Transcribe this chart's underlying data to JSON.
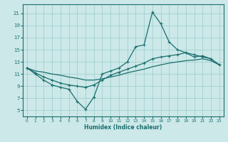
{
  "xlabel": "Humidex (Indice chaleur)",
  "xlim": [
    -0.5,
    23.5
  ],
  "ylim": [
    4,
    22.5
  ],
  "yticks": [
    5,
    7,
    9,
    11,
    13,
    15,
    17,
    19,
    21
  ],
  "xticks": [
    0,
    1,
    2,
    3,
    4,
    5,
    6,
    7,
    8,
    9,
    10,
    11,
    12,
    13,
    14,
    15,
    16,
    17,
    18,
    19,
    20,
    21,
    22,
    23
  ],
  "bg_color": "#cce8e8",
  "grid_color": "#99cccc",
  "line_color": "#1a6e6e",
  "line1_x": [
    0,
    1,
    2,
    3,
    4,
    5,
    6,
    7,
    8,
    9,
    10,
    11,
    12,
    13,
    14,
    15,
    16,
    17,
    18,
    19,
    20,
    21,
    22,
    23
  ],
  "line1_y": [
    12.0,
    11.0,
    10.0,
    9.2,
    8.8,
    8.5,
    6.5,
    5.2,
    7.2,
    11.0,
    11.5,
    12.0,
    13.0,
    15.5,
    15.8,
    21.2,
    19.3,
    16.3,
    15.0,
    14.5,
    13.8,
    14.0,
    13.5,
    12.5
  ],
  "line2_x": [
    0,
    1,
    2,
    3,
    4,
    5,
    6,
    7,
    8,
    9,
    10,
    11,
    12,
    13,
    14,
    15,
    16,
    17,
    18,
    19,
    20,
    21,
    22,
    23
  ],
  "line2_y": [
    12.0,
    11.2,
    10.5,
    10.0,
    9.5,
    9.2,
    9.0,
    8.8,
    9.2,
    10.0,
    10.8,
    11.3,
    11.8,
    12.3,
    12.8,
    13.5,
    13.8,
    14.0,
    14.2,
    14.5,
    14.2,
    13.8,
    13.5,
    12.5
  ],
  "line3_x": [
    0,
    1,
    2,
    3,
    4,
    5,
    6,
    7,
    8,
    9,
    10,
    11,
    12,
    13,
    14,
    15,
    16,
    17,
    18,
    19,
    20,
    21,
    22,
    23
  ],
  "line3_y": [
    12.0,
    11.5,
    11.3,
    11.0,
    10.8,
    10.5,
    10.3,
    10.0,
    10.0,
    10.2,
    10.5,
    10.8,
    11.2,
    11.5,
    11.8,
    12.2,
    12.5,
    12.8,
    13.0,
    13.2,
    13.3,
    13.5,
    13.2,
    12.5
  ]
}
